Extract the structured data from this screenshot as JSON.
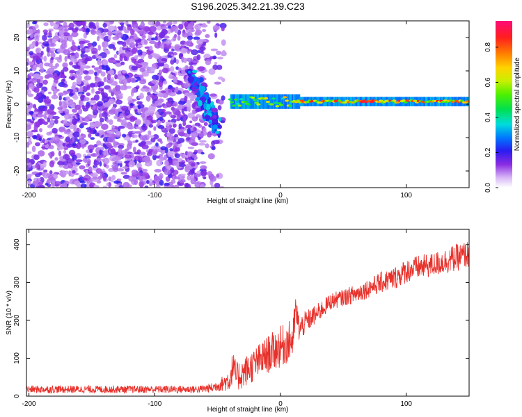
{
  "figure": {
    "title": "S196.2025.342.21.39.C23"
  },
  "chart_data": [
    {
      "type": "heatmap",
      "panel": "spectrogram",
      "xlabel": "Height of straight line (km)",
      "ylabel": "Frequency (Hz)",
      "xlim": [
        -202,
        150
      ],
      "ylim": [
        -25,
        25
      ],
      "xticks": [
        -200,
        -100,
        0,
        100
      ],
      "yticks": [
        -20,
        -10,
        0,
        10,
        20
      ],
      "colorbar": {
        "label": "Normalized spectral amplitude",
        "range": [
          0.0,
          0.95
        ],
        "ticks": [
          0.0,
          0.2,
          0.4,
          0.6,
          0.8
        ]
      },
      "features": [
        {
          "name": "broadband noise",
          "x_range": [
            -202,
            -55
          ],
          "f_range": [
            -25,
            25
          ],
          "amplitude": 0.22
        },
        {
          "name": "descending wisp",
          "x_range": [
            -70,
            -50
          ],
          "f_start": 8,
          "f_end": -7,
          "amplitude": 0.35
        },
        {
          "name": "carrier line",
          "x_range": [
            -40,
            150
          ],
          "f_center": 0.8,
          "amplitude": 0.9
        }
      ]
    },
    {
      "type": "line",
      "panel": "snr",
      "xlabel": "Height of straight line (km)",
      "ylabel": "SNR (10 * v/v)",
      "xlim": [
        -202,
        150
      ],
      "ylim": [
        0,
        440
      ],
      "xticks": [
        -200,
        -100,
        0,
        100
      ],
      "yticks": [
        0,
        100,
        200,
        300,
        400
      ],
      "series": [
        {
          "name": "SNR",
          "color": "#e8302a",
          "x": [
            -202,
            -180,
            -160,
            -140,
            -120,
            -100,
            -80,
            -65,
            -55,
            -50,
            -45,
            -40,
            -38,
            -35,
            -30,
            -20,
            -10,
            0,
            10,
            12,
            15,
            20,
            30,
            40,
            50,
            60,
            70,
            80,
            90,
            100,
            110,
            120,
            130,
            140,
            150
          ],
          "y": [
            18,
            18,
            18,
            18,
            18,
            18,
            18,
            18,
            22,
            28,
            35,
            45,
            80,
            50,
            60,
            85,
            110,
            130,
            150,
            230,
            175,
            195,
            220,
            250,
            260,
            270,
            285,
            300,
            310,
            330,
            340,
            345,
            355,
            365,
            375
          ],
          "noise_amplitude": [
            10,
            10,
            10,
            10,
            10,
            10,
            10,
            10,
            12,
            15,
            22,
            35,
            40,
            40,
            40,
            45,
            50,
            55,
            55,
            40,
            35,
            30,
            25,
            22,
            22,
            25,
            25,
            28,
            30,
            32,
            32,
            32,
            34,
            36,
            36
          ]
        }
      ]
    }
  ]
}
